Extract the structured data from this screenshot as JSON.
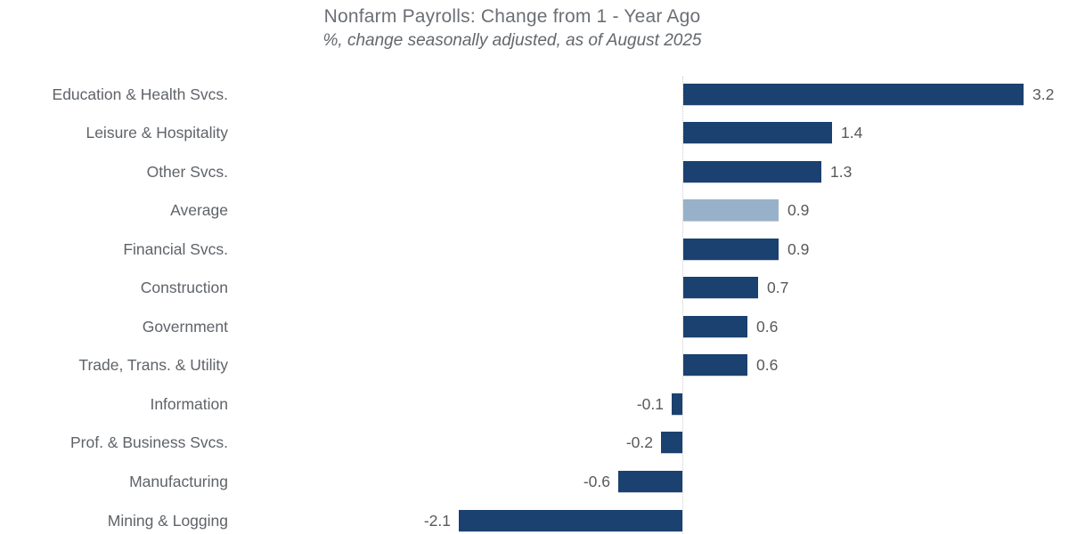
{
  "chart_data": {
    "type": "bar",
    "orientation": "horizontal",
    "title": "Nonfarm Payrolls: Change from 1 - Year Ago",
    "subtitle": "%, change seasonally adjusted, as of August 2025",
    "categories": [
      "Education & Health Svcs.",
      "Leisure & Hospitality",
      "Other Svcs.",
      "Average",
      "Financial Svcs.",
      "Construction",
      "Government",
      "Trade, Trans. & Utility",
      "Information",
      "Prof. & Business Svcs.",
      "Manufacturing",
      "Mining & Logging"
    ],
    "values": [
      3.2,
      1.4,
      1.3,
      0.9,
      0.9,
      0.7,
      0.6,
      0.6,
      -0.1,
      -0.2,
      -0.6,
      -2.1
    ],
    "value_labels": [
      "3.2",
      "1.4",
      "1.3",
      "0.9",
      "0.9",
      "0.7",
      "0.6",
      "0.6",
      "-0.1",
      "-0.2",
      "-0.6",
      "-2.1"
    ],
    "highlight_index": 3,
    "unit": "%",
    "axis": {
      "zero_line": "dotted-vertical",
      "gridlines": false,
      "x_tick_labels": false,
      "approx_x_range": [
        -2.5,
        3.5
      ]
    },
    "legend": {
      "visible": false
    },
    "colors": {
      "bar": "#1a416f",
      "highlight_bar": "#97b1c9",
      "category_text": "#5f6368",
      "value_text": "#57595c",
      "title_text": "#6b6f74",
      "zero_line": "#cccccc",
      "background": "#ffffff"
    }
  }
}
